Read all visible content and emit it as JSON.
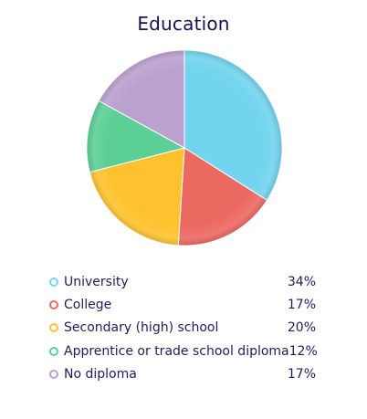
{
  "chart_data": {
    "type": "pie",
    "title": "Education",
    "categories": [
      "University",
      "College",
      "Secondary (high) school",
      "Apprentice or trade school diploma",
      "No diploma"
    ],
    "values": [
      34,
      17,
      20,
      12,
      17
    ],
    "value_labels": [
      "34%",
      "17%",
      "20%",
      "12%",
      "17%"
    ],
    "unit": "%",
    "colors": [
      "#72d4ee",
      "#ec6962",
      "#fdc22e",
      "#5ccf96",
      "#bba1d0"
    ],
    "start_angle_deg": 0,
    "direction": "clockwise",
    "legend_position": "bottom"
  }
}
